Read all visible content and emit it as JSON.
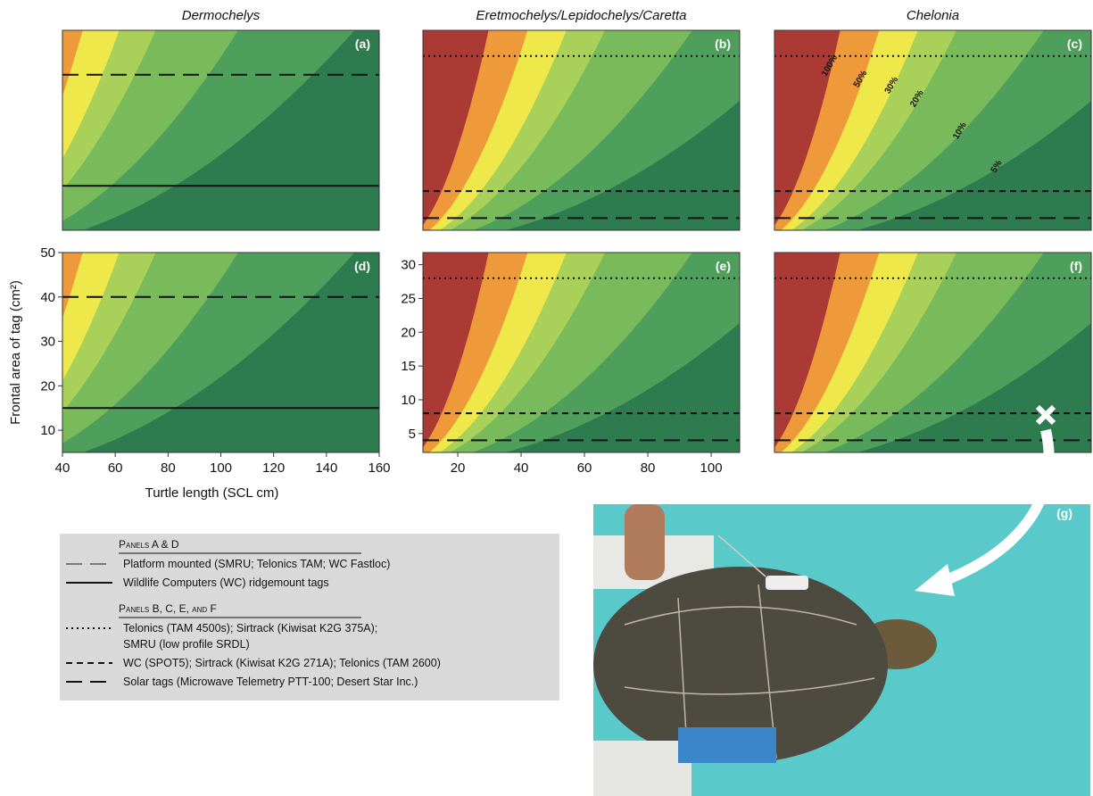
{
  "chart_data": [
    {
      "type": "contour",
      "title": "Dermochelys",
      "label": "(a)",
      "xlim": [
        40,
        160
      ],
      "ylim": [
        5,
        50
      ],
      "tag_lines": [
        {
          "value": 40,
          "style": "long-dash"
        },
        {
          "value": 15,
          "style": "solid"
        }
      ]
    },
    {
      "type": "contour",
      "title": "Eretmochelys/Lepidochelys/Caretta",
      "label": "(b)",
      "xlim": [
        9,
        109
      ],
      "ylim": [
        2.2,
        31.8
      ],
      "tag_lines": [
        {
          "value": 28,
          "style": "dotted"
        },
        {
          "value": 8,
          "style": "short-dash"
        },
        {
          "value": 4,
          "style": "long-dash"
        }
      ]
    },
    {
      "type": "contour",
      "title": "Chelonia",
      "label": "(c)",
      "xlim": [
        9,
        109
      ],
      "ylim": [
        2.2,
        31.8
      ],
      "show_level_labels": true,
      "tag_lines": [
        {
          "value": 28,
          "style": "dotted"
        },
        {
          "value": 8,
          "style": "short-dash"
        },
        {
          "value": 4,
          "style": "long-dash"
        }
      ]
    },
    {
      "type": "contour",
      "label": "(d)",
      "xlim": [
        40,
        160
      ],
      "ylim": [
        5,
        50
      ],
      "xticks": [
        40,
        60,
        80,
        100,
        120,
        140,
        160
      ],
      "yticks": [
        10,
        20,
        30,
        40,
        50
      ],
      "xlabel": "Turtle length (SCL cm)",
      "ylabel": "Frontal area of tag (cm²)",
      "tag_lines": [
        {
          "value": 40,
          "style": "long-dash"
        },
        {
          "value": 15,
          "style": "solid"
        }
      ]
    },
    {
      "type": "contour",
      "label": "(e)",
      "xlim": [
        9,
        109
      ],
      "ylim": [
        2.2,
        31.8
      ],
      "xticks": [
        20,
        40,
        60,
        80,
        100
      ],
      "yticks": [
        5,
        10,
        15,
        20,
        25,
        30
      ],
      "tag_lines": [
        {
          "value": 28,
          "style": "dotted"
        },
        {
          "value": 8,
          "style": "short-dash"
        },
        {
          "value": 4,
          "style": "long-dash"
        }
      ]
    },
    {
      "type": "contour",
      "label": "(f)",
      "xlim": [
        9,
        109
      ],
      "ylim": [
        2.2,
        31.8
      ],
      "tag_lines": [
        {
          "value": 28,
          "style": "dotted"
        },
        {
          "value": 8,
          "style": "short-dash"
        },
        {
          "value": 4,
          "style": "long-dash"
        }
      ]
    }
  ],
  "contour": {
    "levels": [
      {
        "value": 5,
        "label": "5%"
      },
      {
        "value": 10,
        "label": "10%"
      },
      {
        "value": 20,
        "label": "20%"
      },
      {
        "value": 30,
        "label": "30%"
      },
      {
        "value": 50,
        "label": "50%"
      },
      {
        "value": 100,
        "label": "100%"
      }
    ],
    "colors": [
      "#2e7b4f",
      "#4f9f5c",
      "#79bb5b",
      "#a9d15a",
      "#eee84a",
      "#ee9a3a",
      "#ab3a35"
    ]
  },
  "legend": [
    {
      "heading": "Panels A & D",
      "entries": [
        {
          "lines": [
            "Platform mounted (SMRU; Telonics TAM; WC Fastloc)"
          ],
          "style": "long-dash",
          "color": "#777"
        },
        {
          "lines": [
            "Wildlife Computers (WC) ridgemount tags"
          ],
          "style": "solid",
          "color": "#111"
        }
      ]
    },
    {
      "heading": "Panels B, C, E, and F",
      "entries": [
        {
          "lines": [
            "Telonics (TAM 4500s); Sirtrack (Kiwisat K2G 375A);",
            "SMRU (low profile SRDL)"
          ],
          "style": "dotted",
          "color": "#111"
        },
        {
          "lines": [
            "WC (SPOT5); Sirtrack (Kiwisat K2G 271A); Telonics (TAM 2600)"
          ],
          "style": "short-dash",
          "color": "#111"
        },
        {
          "lines": [
            "Solar tags (Microwave Telemetry PTT-100; Desert Star Inc.)"
          ],
          "style": "long-dash",
          "color": "#111"
        }
      ]
    }
  ],
  "photo": {
    "label": "(g)"
  }
}
